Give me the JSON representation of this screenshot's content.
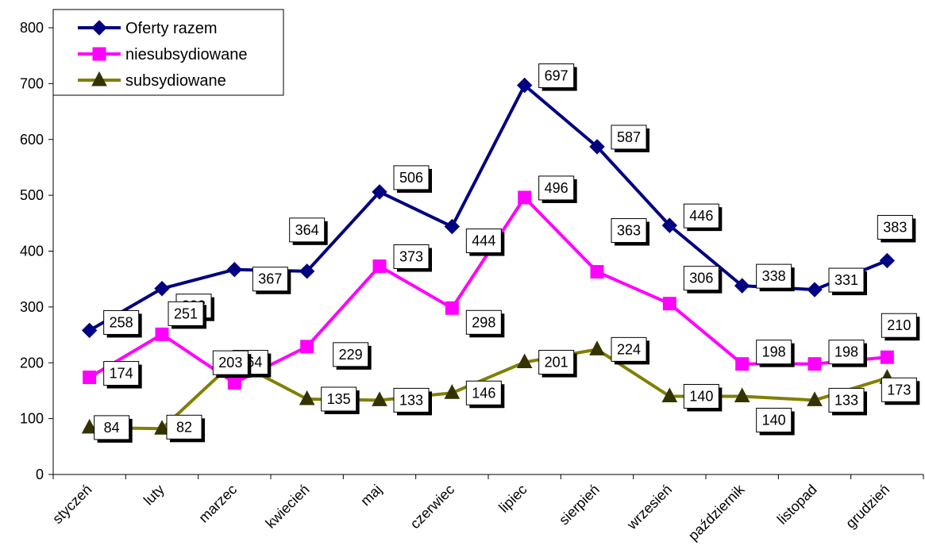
{
  "chart_data": {
    "type": "line",
    "categories": [
      "styczeń",
      "luty",
      "marzec",
      "kwiecień",
      "maj",
      "czerwiec",
      "lipiec",
      "sierpień",
      "wrzesień",
      "październik",
      "listopad",
      "grudzień"
    ],
    "ylim": [
      0,
      800
    ],
    "yticks": [
      "0",
      "100",
      "200",
      "300",
      "400",
      "500",
      "600",
      "700",
      "800"
    ],
    "grid": false,
    "legend_position": "top-left",
    "series": [
      {
        "name": "Oferty razem",
        "color": "#000080",
        "marker": "diamond",
        "values": [
          258,
          333,
          367,
          364,
          506,
          444,
          697,
          587,
          446,
          338,
          331,
          383
        ],
        "labels": [
          "258",
          "333",
          "367",
          "364",
          "506",
          "444",
          "697",
          "587",
          "446",
          "338",
          "331",
          "383"
        ]
      },
      {
        "name": "niesubsydiowane",
        "color": "#FF00FF",
        "marker": "square",
        "values": [
          174,
          251,
          164,
          229,
          373,
          298,
          496,
          363,
          306,
          198,
          198,
          210
        ],
        "labels": [
          "174",
          "251",
          "164",
          "229",
          "373",
          "298",
          "496",
          "363",
          "306",
          "198",
          "198",
          "210"
        ]
      },
      {
        "name": "subsydiowane",
        "color": "#808000",
        "marker": "triangle",
        "values": [
          84,
          82,
          203,
          135,
          133,
          146,
          201,
          224,
          140,
          140,
          133,
          173
        ],
        "labels": [
          "84",
          "82",
          "203",
          "135",
          "133",
          "146",
          "201",
          "224",
          "140",
          "140",
          "133",
          "173"
        ]
      }
    ]
  }
}
